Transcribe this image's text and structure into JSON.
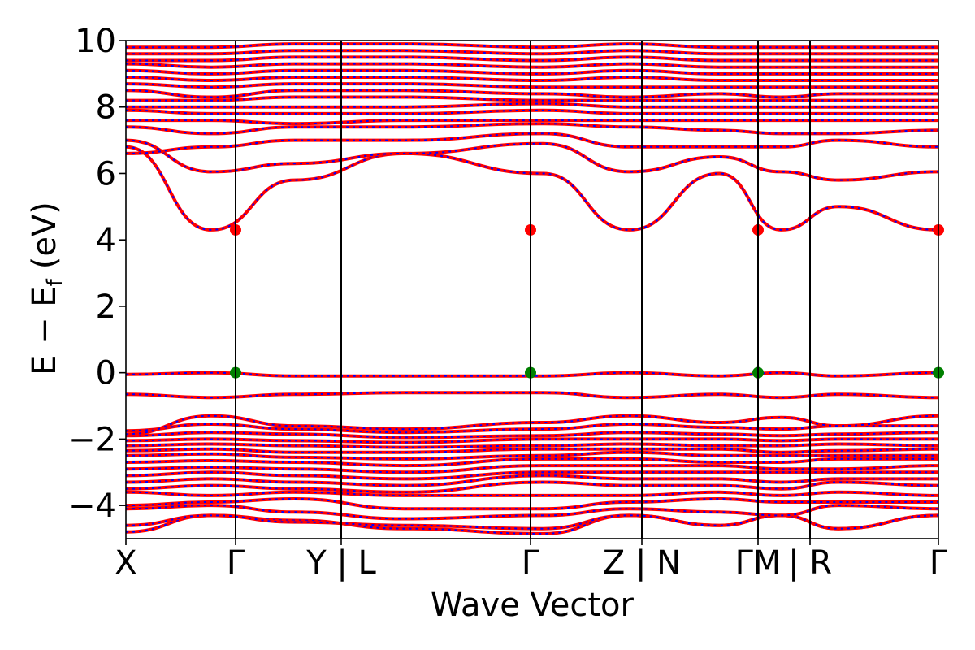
{
  "chart_data": {
    "type": "line",
    "title": "",
    "xlabel": "Wave Vector",
    "ylabel": {
      "main": "E − E",
      "sub": "f",
      "unit": "(eV)"
    },
    "ylim": [
      -5,
      10
    ],
    "yticks": [
      -4,
      -2,
      0,
      2,
      4,
      6,
      8,
      10
    ],
    "ytick_labels": [
      "−4",
      "−2",
      "0",
      "2",
      "4",
      "6",
      "8",
      "10"
    ],
    "xlim": [
      0,
      1
    ],
    "kpath_breaks": [
      0.0,
      0.135,
      0.265,
      0.498,
      0.635,
      0.778,
      0.842,
      1.0
    ],
    "xtick_labels": [
      {
        "x": 0.0,
        "label": "X"
      },
      {
        "x": 0.135,
        "label": "Γ"
      },
      {
        "x": 0.265,
        "label": "Y | L"
      },
      {
        "x": 0.498,
        "label": "Γ"
      },
      {
        "x": 0.635,
        "label": "Z | N"
      },
      {
        "x": 0.778,
        "label": "ΓM"
      },
      {
        "x": 0.842,
        "label": "| R"
      },
      {
        "x": 1.0,
        "label": "Γ"
      }
    ],
    "grid": false,
    "colors": {
      "band_solid": "#ff0000",
      "band_dashed": "#0000ff",
      "cbm_marker": "#ff0000",
      "vbm_marker": "#008000",
      "frame": "#000000"
    },
    "cbm": {
      "x": [
        0.135,
        0.498,
        0.778,
        1.0
      ],
      "y": 4.3
    },
    "vbm": {
      "x": [
        0.135,
        0.498,
        0.778,
        1.0
      ],
      "y": 0.0
    },
    "bands": [
      {
        "y": [
          -4.8,
          -4.3,
          -4.45,
          -4.7,
          -4.85,
          -4.3,
          -4.6,
          -4.3,
          -4.7,
          -4.3
        ]
      },
      {
        "y": [
          -4.6,
          -4.3,
          -4.5,
          -4.6,
          -4.7,
          -4.3,
          -4.6,
          -4.3,
          -4.7,
          -4.3
        ]
      },
      {
        "y": [
          -4.1,
          -4.0,
          -4.2,
          -4.4,
          -4.3,
          -4.1,
          -4.2,
          -4.3,
          -4.0,
          -4.1
        ]
      },
      {
        "y": [
          -4.0,
          -3.9,
          -3.8,
          -4.1,
          -4.1,
          -3.9,
          -3.8,
          -3.9,
          -3.9,
          -3.9
        ]
      },
      {
        "y": [
          -3.6,
          -3.7,
          -3.6,
          -3.7,
          -3.7,
          -3.7,
          -3.6,
          -3.7,
          -3.6,
          -3.7
        ]
      },
      {
        "y": [
          -3.5,
          -3.4,
          -3.5,
          -3.6,
          -3.3,
          -3.4,
          -3.4,
          -3.5,
          -3.3,
          -3.4
        ]
      },
      {
        "y": [
          -3.3,
          -3.2,
          -3.3,
          -3.4,
          -3.1,
          -3.2,
          -3.2,
          -3.3,
          -3.2,
          -3.2
        ]
      },
      {
        "y": [
          -3.1,
          -3.0,
          -3.1,
          -3.2,
          -3.0,
          -3.0,
          -3.0,
          -3.0,
          -3.0,
          -3.0
        ]
      },
      {
        "y": [
          -2.9,
          -2.85,
          -2.9,
          -3.0,
          -2.8,
          -2.8,
          -2.8,
          -2.9,
          -2.9,
          -2.8
        ]
      },
      {
        "y": [
          -2.7,
          -2.65,
          -2.7,
          -2.8,
          -2.6,
          -2.6,
          -2.7,
          -2.7,
          -2.6,
          -2.6
        ]
      },
      {
        "y": [
          -2.5,
          -2.45,
          -2.55,
          -2.6,
          -2.5,
          -2.4,
          -2.5,
          -2.5,
          -2.5,
          -2.5
        ]
      },
      {
        "y": [
          -2.35,
          -2.3,
          -2.4,
          -2.4,
          -2.3,
          -2.3,
          -2.3,
          -2.4,
          -2.35,
          -2.3
        ]
      },
      {
        "y": [
          -2.2,
          -2.15,
          -2.2,
          -2.25,
          -2.2,
          -2.15,
          -2.2,
          -2.2,
          -2.15,
          -2.2
        ]
      },
      {
        "y": [
          -2.05,
          -2.0,
          -2.05,
          -2.1,
          -2.0,
          -2.0,
          -2.0,
          -2.05,
          -2.0,
          -2.0
        ]
      },
      {
        "y": [
          -1.9,
          -1.8,
          -1.85,
          -1.95,
          -1.9,
          -1.8,
          -1.85,
          -1.9,
          -1.85,
          -1.8
        ]
      },
      {
        "y": [
          -1.75,
          -1.55,
          -1.7,
          -1.8,
          -1.7,
          -1.55,
          -1.65,
          -1.7,
          -1.6,
          -1.6
        ]
      },
      {
        "y": [
          -1.85,
          -1.3,
          -1.6,
          -1.7,
          -1.5,
          -1.3,
          -1.5,
          -1.35,
          -1.6,
          -1.3
        ]
      },
      {
        "y": [
          -0.65,
          -0.75,
          -0.65,
          -0.6,
          -0.6,
          -0.75,
          -0.65,
          -0.75,
          -0.65,
          -0.75
        ]
      },
      {
        "y": [
          -0.05,
          0.0,
          -0.1,
          -0.1,
          -0.1,
          0.0,
          -0.1,
          0.0,
          -0.1,
          0.0
        ]
      },
      {
        "y": [
          6.8,
          4.3,
          5.8,
          6.6,
          6.0,
          4.3,
          6.0,
          4.3,
          5.0,
          4.3
        ]
      },
      {
        "y": [
          7.0,
          6.05,
          6.3,
          6.6,
          6.9,
          6.05,
          6.5,
          6.05,
          5.8,
          6.05
        ]
      },
      {
        "y": [
          6.6,
          6.8,
          7.0,
          7.0,
          7.2,
          6.8,
          6.8,
          6.8,
          7.0,
          6.8
        ]
      },
      {
        "y": [
          7.4,
          7.2,
          7.4,
          7.4,
          7.5,
          7.4,
          7.3,
          7.2,
          7.2,
          7.3
        ]
      },
      {
        "y": [
          7.6,
          7.6,
          7.5,
          7.6,
          7.6,
          7.6,
          7.6,
          7.6,
          7.6,
          7.6
        ]
      },
      {
        "y": [
          7.9,
          7.8,
          7.8,
          7.8,
          7.9,
          7.8,
          7.8,
          7.8,
          7.8,
          7.8
        ]
      },
      {
        "y": [
          8.0,
          8.0,
          8.0,
          8.0,
          8.1,
          8.0,
          8.0,
          8.0,
          8.0,
          8.0
        ]
      },
      {
        "y": [
          8.2,
          8.2,
          8.3,
          8.3,
          8.2,
          8.2,
          8.2,
          8.2,
          8.2,
          8.2
        ]
      },
      {
        "y": [
          8.5,
          8.3,
          8.5,
          8.5,
          8.4,
          8.3,
          8.4,
          8.3,
          8.4,
          8.4
        ]
      },
      {
        "y": [
          8.7,
          8.6,
          8.7,
          8.7,
          8.6,
          8.6,
          8.6,
          8.6,
          8.6,
          8.6
        ]
      },
      {
        "y": [
          8.9,
          8.8,
          8.9,
          8.9,
          8.8,
          8.9,
          8.8,
          8.8,
          8.8,
          8.8
        ]
      },
      {
        "y": [
          9.1,
          9.0,
          9.1,
          9.1,
          9.0,
          9.1,
          9.0,
          9.0,
          9.0,
          9.0
        ]
      },
      {
        "y": [
          9.3,
          9.2,
          9.3,
          9.3,
          9.2,
          9.3,
          9.2,
          9.2,
          9.2,
          9.2
        ]
      },
      {
        "y": [
          9.4,
          9.4,
          9.5,
          9.5,
          9.4,
          9.5,
          9.4,
          9.4,
          9.4,
          9.4
        ]
      },
      {
        "y": [
          9.6,
          9.6,
          9.7,
          9.7,
          9.6,
          9.7,
          9.6,
          9.6,
          9.6,
          9.6
        ]
      },
      {
        "y": [
          9.8,
          9.8,
          9.9,
          9.9,
          9.8,
          9.9,
          9.8,
          9.8,
          9.8,
          9.8
        ]
      }
    ]
  }
}
